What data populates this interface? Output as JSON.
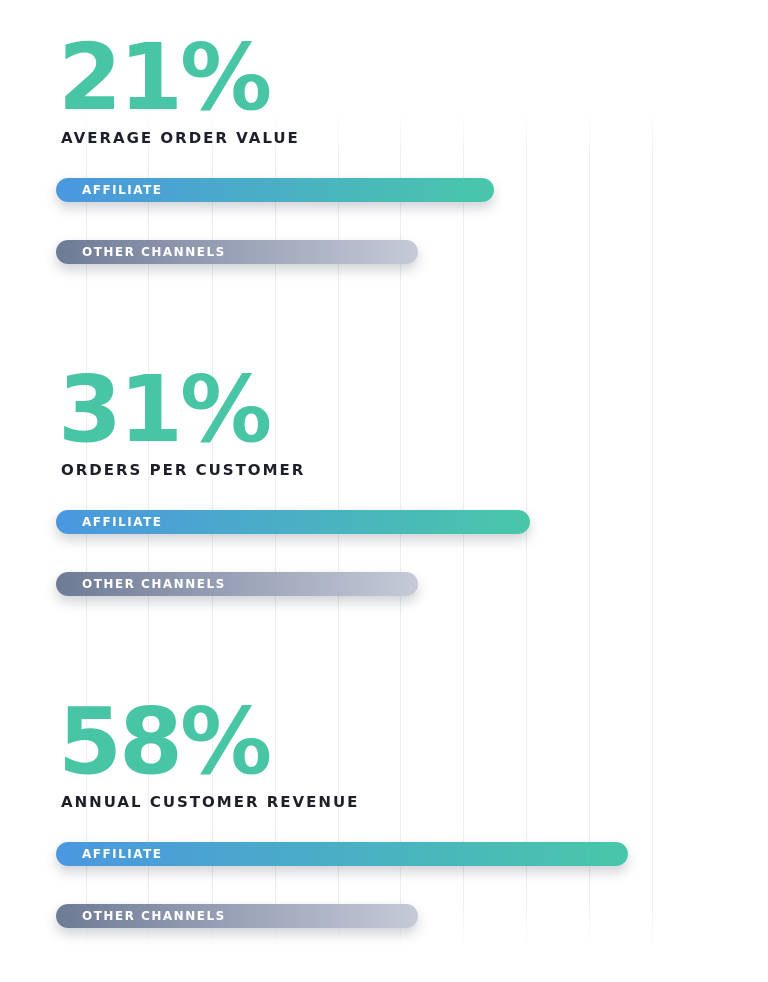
{
  "colors": {
    "percent": "#48c5a4",
    "metric_text": "#1e2029",
    "affiliate_start": "#4a97e0",
    "affiliate_end": "#49c7a9",
    "other_start": "#6e7b96",
    "other_end": "#c6cad8",
    "gridline": "#eceef2"
  },
  "chart_data": {
    "type": "bar",
    "orientation": "horizontal",
    "grid": true,
    "xlim": [
      0,
      100
    ],
    "sections": [
      {
        "percent": "21%",
        "metric": "AVERAGE ORDER VALUE",
        "series": [
          {
            "name": "AFFILIATE",
            "value": 121
          },
          {
            "name": "OTHER CHANNELS",
            "value": 100
          }
        ]
      },
      {
        "percent": "31%",
        "metric": "ORDERS PER CUSTOMER",
        "series": [
          {
            "name": "AFFILIATE",
            "value": 131
          },
          {
            "name": "OTHER CHANNELS",
            "value": 100
          }
        ]
      },
      {
        "percent": "58%",
        "metric": "ANNUAL CUSTOMER REVENUE",
        "series": [
          {
            "name": "AFFILIATE",
            "value": 158
          },
          {
            "name": "OTHER CHANNELS",
            "value": 100
          }
        ]
      }
    ]
  }
}
